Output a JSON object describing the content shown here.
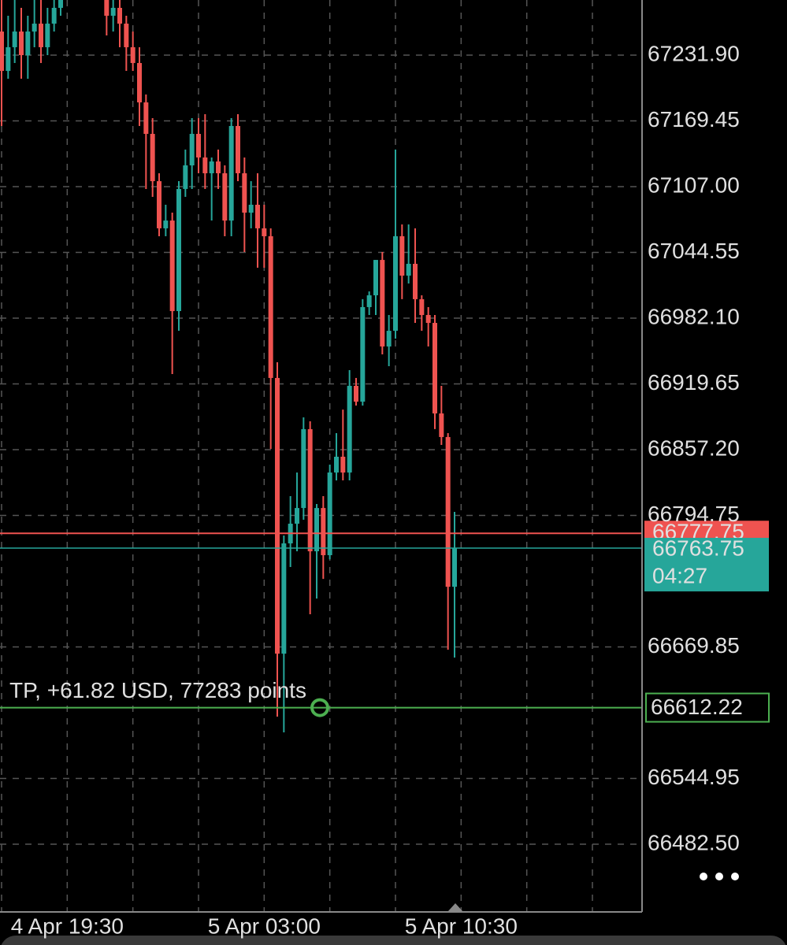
{
  "chart_data": {
    "type": "candlestick",
    "categories": [
      null,
      null,
      null,
      null,
      null,
      null,
      null,
      null,
      null,
      null,
      "4 Apr 19:30",
      null,
      null,
      null,
      null,
      null,
      null,
      null,
      null,
      null,
      null,
      null,
      null,
      null,
      null,
      null,
      null,
      null,
      null,
      null,
      null,
      null,
      null,
      null,
      null,
      null,
      null,
      null,
      null,
      null,
      "5 Apr 03:00",
      null,
      null,
      null,
      null,
      null,
      null,
      null,
      null,
      null,
      null,
      null,
      null,
      null,
      null,
      null,
      null,
      null,
      null,
      null,
      null,
      null,
      null,
      null,
      null,
      null,
      null,
      null,
      null,
      null,
      "5 Apr 10:30"
    ],
    "open": [
      67254.3,
      67216.9,
      67239.4,
      67254.3,
      67231.9,
      67254.3,
      67261.8,
      67239.4,
      67261.8,
      67276.8,
      67299.2,
      67314.2,
      67306.7,
      67321.6,
      67314.2,
      67306.7,
      67291.7,
      67269.3,
      67276.8,
      67261.8,
      67239.4,
      67224.4,
      67187.0,
      67157.1,
      67112.2,
      67067.4,
      67074.8,
      66988.8,
      67104.8,
      67127.2,
      67157.1,
      67134.7,
      67119.7,
      67130.9,
      67119.7,
      67074.8,
      67164.6,
      67119.7,
      67082.3,
      67089.8,
      67067.4,
      67059.9,
      66925.3,
      66663.5,
      66768.2,
      66786.9,
      66801.8,
      66876.7,
      66760.7,
      66801.8,
      66757.0,
      66835.5,
      66850.5,
      66835.5,
      66917.8,
      66902.8,
      66992.6,
      67003.8,
      67037.4,
      66955.2,
      66970.1,
      67059.9,
      67022.5,
      67033.7,
      67000.1,
      66985.1,
      66977.6,
      66891.6,
      66869.2,
      66727.0,
      null
    ],
    "high": [
      67284.3,
      67269.3,
      67284.3,
      67276.8,
      67269.3,
      67291.7,
      67284.3,
      67276.8,
      67299.2,
      67314.2,
      67329.1,
      67321.6,
      67329.1,
      67329.1,
      67321.6,
      67314.2,
      67306.7,
      67291.7,
      67284.3,
      67269.3,
      67254.3,
      67239.4,
      67194.5,
      67172.1,
      67119.7,
      67089.8,
      67082.3,
      67112.2,
      67142.2,
      67172.1,
      67172.1,
      67175.8,
      67134.7,
      67142.2,
      67127.2,
      67172.1,
      67175.8,
      67134.7,
      67112.2,
      67119.7,
      67089.8,
      67067.4,
      66940.2,
      66775.7,
      66813.1,
      66835.5,
      66887.9,
      66884.1,
      66805.6,
      66813.1,
      66843.0,
      66872.9,
      66895.3,
      66932.7,
      66925.3,
      67000.1,
      67007.5,
      67037.4,
      67044.9,
      66985.1,
      67142.2,
      67071.1,
      67071.1,
      67067.4,
      67003.8,
      66992.6,
      66985.1,
      66917.8,
      66872.9,
      66798.1,
      null
    ],
    "low": [
      67164.6,
      67209.5,
      67224.4,
      67209.5,
      67209.5,
      67239.4,
      67224.4,
      67231.9,
      67254.3,
      67269.3,
      67284.3,
      67299.2,
      67299.2,
      67306.7,
      67299.2,
      67284.3,
      67250.6,
      67254.3,
      67239.4,
      67216.9,
      67216.9,
      67164.6,
      67104.8,
      67097.3,
      67059.9,
      67059.9,
      66929.0,
      66970.1,
      67097.3,
      67104.8,
      67119.7,
      67104.8,
      67074.8,
      67104.8,
      67059.9,
      67059.9,
      67112.2,
      67044.9,
      67067.4,
      67030.0,
      67030.0,
      66857.9,
      66603.7,
      66588.7,
      66745.8,
      66760.7,
      66790.6,
      66700.9,
      66715.8,
      66734.5,
      66753.2,
      66828.0,
      66828.0,
      66828.0,
      66899.1,
      66899.1,
      66985.1,
      66985.1,
      66947.7,
      66936.5,
      66962.7,
      67000.1,
      67015.0,
      66977.6,
      66970.1,
      66955.2,
      66876.7,
      66861.7,
      66667.2,
      66659.8,
      null
    ],
    "close": [
      67216.9,
      67239.4,
      67254.3,
      67231.9,
      67254.3,
      67261.8,
      67239.4,
      67261.8,
      67276.8,
      67299.2,
      67314.2,
      67306.7,
      67321.6,
      67314.2,
      67306.7,
      67291.7,
      67269.3,
      67276.8,
      67261.8,
      67239.4,
      67224.4,
      67187.0,
      67157.1,
      67112.2,
      67067.4,
      67074.8,
      66988.8,
      67104.8,
      67127.2,
      67157.1,
      67134.7,
      67119.7,
      67130.9,
      67119.7,
      67074.8,
      67164.6,
      67119.7,
      67082.3,
      67089.8,
      67067.4,
      67059.9,
      66925.3,
      66663.5,
      66768.2,
      66786.9,
      66801.8,
      66876.7,
      66760.7,
      66801.8,
      66757.0,
      66835.5,
      66850.5,
      66835.5,
      66917.8,
      66902.8,
      66992.6,
      67003.8,
      67037.4,
      66955.2,
      66970.1,
      67059.9,
      67022.5,
      67033.7,
      67000.1,
      66985.1,
      66977.6,
      66891.6,
      66869.2,
      66727.0,
      66763.75,
      null
    ],
    "up_color": "#26a69a",
    "down_color": "#ef5350",
    "ylim": [
      66416.7,
      67284.25
    ],
    "yticks": [
      {
        "value": 67231.9,
        "label": "67231.90"
      },
      {
        "value": 67169.45,
        "label": "67169.45"
      },
      {
        "value": 67107.0,
        "label": "67107.00"
      },
      {
        "value": 67044.55,
        "label": "67044.55"
      },
      {
        "value": 66982.1,
        "label": "66982.10"
      },
      {
        "value": 66919.65,
        "label": "66919.65"
      },
      {
        "value": 66857.2,
        "label": "66857.20"
      },
      {
        "value": 66794.75,
        "label": "66794.75"
      },
      {
        "value": 66669.85,
        "label": "66669.85"
      },
      {
        "value": 66544.95,
        "label": "66544.95"
      },
      {
        "value": 66482.5,
        "label": "66482.50"
      }
    ],
    "grid": true,
    "ask_price": 66777.75,
    "ask_color": "#ef5350",
    "bid_price": 66763.75,
    "bid_color": "#26a69a",
    "countdown": "04:27",
    "take_profit": {
      "price": 66612.22,
      "label": "TP, +61.82 USD, 77283 points",
      "color": "#4caf50"
    }
  }
}
